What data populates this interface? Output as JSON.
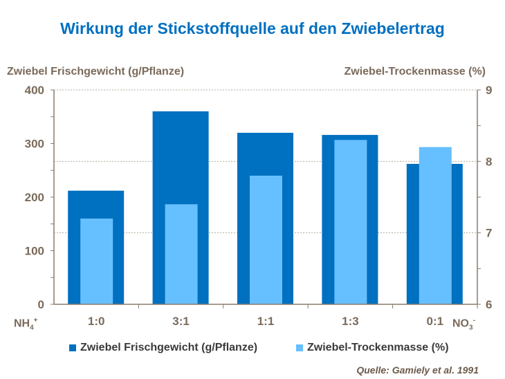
{
  "chart_data": {
    "type": "bar",
    "title": "Wirkung der Stickstoffquelle auf den Zwiebelertrag",
    "categories": [
      "1:0",
      "3:1",
      "1:1",
      "1:3",
      "0:1"
    ],
    "x_left_label": "NH4+",
    "x_right_label": "NO3-",
    "ylabel_left": "Zwiebel Frischgewicht (g/Pflanze)",
    "ylabel_right": "Zwiebel-Trockenmasse  (%)",
    "ylim_left": [
      0,
      400
    ],
    "ylim_right": [
      6,
      9
    ],
    "yticks_left": [
      "0",
      "100",
      "200",
      "300",
      "400"
    ],
    "yticks_right": [
      "6",
      "7",
      "8",
      "9"
    ],
    "grid": "horizontal dashed at right-axis 7 and 8",
    "legend": "bottom",
    "series": [
      {
        "name": "Zwiebel Frischgewicht (g/Pflanze)",
        "axis": "left",
        "color": "#0070c0",
        "values": [
          212,
          360,
          320,
          316,
          262
        ]
      },
      {
        "name": "Zwiebel-Trockenmasse (%)",
        "axis": "right",
        "color": "#66bfff",
        "values": [
          7.2,
          7.4,
          7.8,
          8.3,
          8.2
        ]
      }
    ],
    "source": "Quelle: Gamiely et al.  1991"
  }
}
